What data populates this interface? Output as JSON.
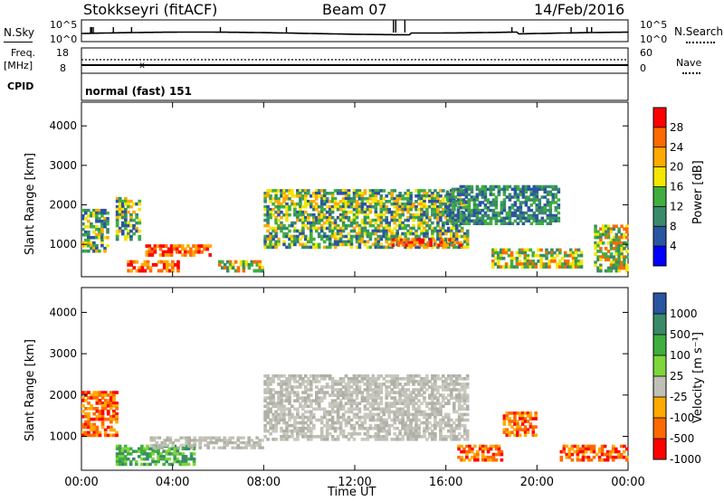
{
  "header": {
    "station": "Stokkseyri (fitACF)",
    "beam": "Beam 07",
    "date": "14/Feb/2016"
  },
  "top_panels": {
    "nsky_label": "N.Sky",
    "nsky_ticks": [
      "10^5",
      "10^0"
    ],
    "nsearch_label": "N.Search",
    "nsearch_ticks": [
      "10^5",
      "10^0"
    ],
    "freq_label_1": "Freq.",
    "freq_label_2": "[MHz]",
    "freq_ticks": [
      "18",
      "8"
    ],
    "nave_label": "Nave",
    "nave_ticks": [
      "60",
      "0"
    ],
    "cpid_label": "CPID",
    "cpid_text": "normal (fast) 151"
  },
  "chart_data": [
    {
      "type": "heatmap",
      "name": "power",
      "ylabel": "Slant Range [km]",
      "yticks": [
        "4000",
        "3000",
        "2000",
        "1000"
      ],
      "ylim": [
        180,
        4600
      ],
      "xlim": [
        0,
        24
      ],
      "colorbar_label": "Power [dB]",
      "colorbar_ticks": [
        "28",
        "24",
        "20",
        "16",
        "12",
        "8",
        "4"
      ],
      "colorbar_colors": [
        "#ff0000",
        "#ff6a00",
        "#ffaa00",
        "#f5e600",
        "#3fae3f",
        "#3a8a6a",
        "#2a55a0",
        "#0000ff"
      ],
      "regions": [
        {
          "x": [
            0.0,
            1.2
          ],
          "y": [
            800,
            1900
          ],
          "level": "mixed"
        },
        {
          "x": [
            1.5,
            2.6
          ],
          "y": [
            1100,
            2200
          ],
          "level": "mixed"
        },
        {
          "x": [
            2.0,
            4.3
          ],
          "y": [
            300,
            600
          ],
          "level": "high"
        },
        {
          "x": [
            2.8,
            5.7
          ],
          "y": [
            700,
            1000
          ],
          "level": "high"
        },
        {
          "x": [
            6.0,
            8.0
          ],
          "y": [
            300,
            600
          ],
          "level": "mid"
        },
        {
          "x": [
            8.0,
            17.0
          ],
          "y": [
            900,
            2400
          ],
          "level": "mixed"
        },
        {
          "x": [
            13.5,
            16.7
          ],
          "y": [
            950,
            1150
          ],
          "level": "high"
        },
        {
          "x": [
            16.0,
            21.0
          ],
          "y": [
            1500,
            2500
          ],
          "level": "low"
        },
        {
          "x": [
            18.0,
            22.0
          ],
          "y": [
            400,
            900
          ],
          "level": "mid"
        },
        {
          "x": [
            22.5,
            24.0
          ],
          "y": [
            300,
            1500
          ],
          "level": "mid"
        }
      ]
    },
    {
      "type": "heatmap",
      "name": "velocity",
      "ylabel": "Slant Range [km]",
      "yticks": [
        "4000",
        "3000",
        "2000",
        "1000"
      ],
      "ylim": [
        180,
        4600
      ],
      "xlim": [
        0,
        24
      ],
      "colorbar_label": "Velocity [m s⁻¹]",
      "colorbar_ticks": [
        "1000",
        "500",
        "100",
        "25",
        "-25",
        "-100",
        "-500",
        "-1000"
      ],
      "colorbar_colors": [
        "#2a55a0",
        "#3a8a6a",
        "#3fae3f",
        "#7dd63a",
        "#bfbfb5",
        "#ffaa00",
        "#ff6a00",
        "#ff0000"
      ],
      "regions": [
        {
          "x": [
            0.0,
            1.6
          ],
          "y": [
            1000,
            2100
          ],
          "level": "negative"
        },
        {
          "x": [
            1.5,
            5.0
          ],
          "y": [
            300,
            800
          ],
          "level": "positive"
        },
        {
          "x": [
            3.0,
            8.0
          ],
          "y": [
            700,
            1000
          ],
          "level": "near-zero"
        },
        {
          "x": [
            8.0,
            17.0
          ],
          "y": [
            900,
            2500
          ],
          "level": "near-zero"
        },
        {
          "x": [
            16.5,
            18.5
          ],
          "y": [
            400,
            800
          ],
          "level": "negative"
        },
        {
          "x": [
            18.5,
            20.0
          ],
          "y": [
            1000,
            1600
          ],
          "level": "negative"
        },
        {
          "x": [
            21.0,
            24.0
          ],
          "y": [
            400,
            800
          ],
          "level": "negative"
        }
      ]
    }
  ],
  "time_axis": {
    "ticks": [
      "00:00",
      "04:00",
      "08:00",
      "12:00",
      "16:00",
      "20:00",
      "00:00"
    ],
    "label": "Time UT"
  }
}
